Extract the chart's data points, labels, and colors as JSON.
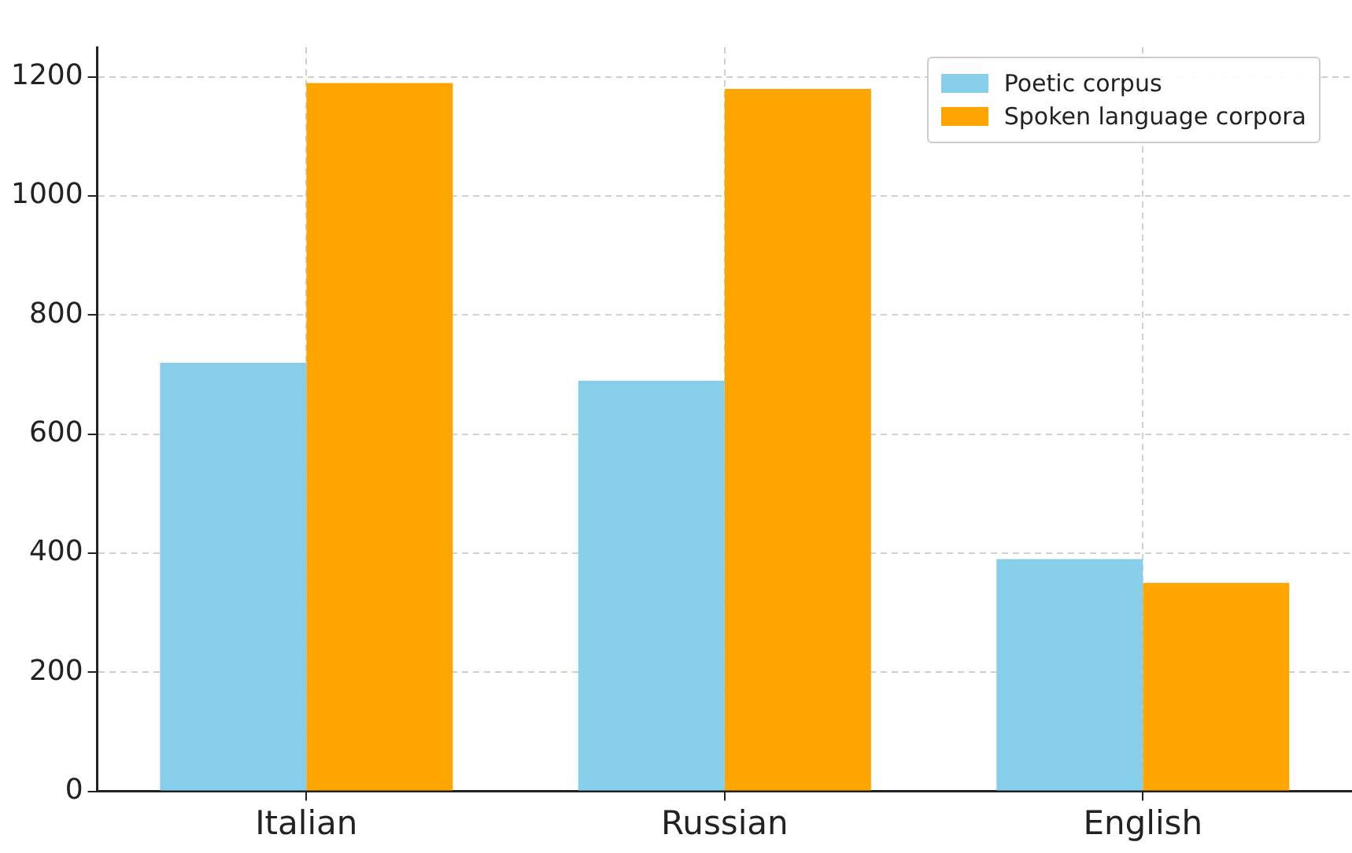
{
  "chart_data": {
    "type": "bar",
    "categories": [
      "Italian",
      "Russian",
      "English"
    ],
    "series": [
      {
        "name": "Poetic corpus",
        "color": "#87ceeb",
        "values": [
          720,
          690,
          390
        ]
      },
      {
        "name": "Spoken language corpora",
        "color": "#ffa500",
        "values": [
          1190,
          1180,
          350
        ]
      }
    ],
    "ylim": [
      0,
      1250
    ],
    "yticks": [
      0,
      200,
      400,
      600,
      800,
      1000,
      1200
    ],
    "grid": true,
    "legend": "top right"
  }
}
